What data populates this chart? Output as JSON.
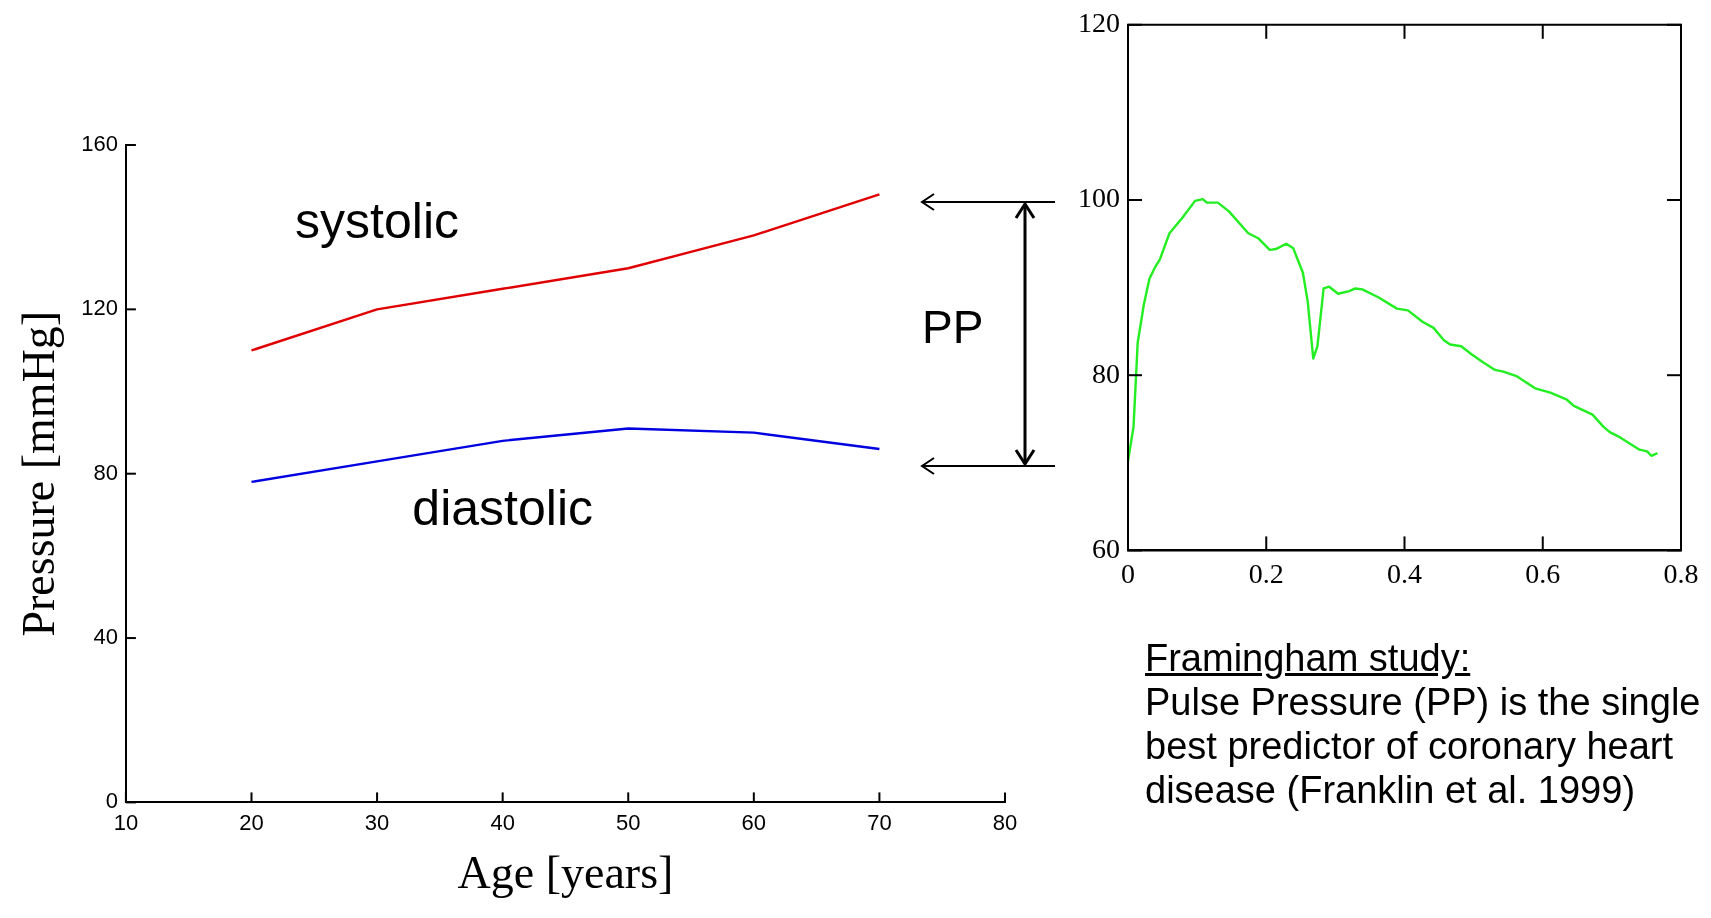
{
  "chart_data": [
    {
      "type": "line",
      "xlabel": "Age [years]",
      "ylabel": "Pressure [mmHg]",
      "x": [
        20,
        30,
        40,
        50,
        60,
        70
      ],
      "xlim": [
        10,
        80
      ],
      "xticks": [
        10,
        20,
        30,
        40,
        50,
        60,
        70,
        80
      ],
      "ylim": [
        0,
        160
      ],
      "yticks": [
        0,
        40,
        80,
        120,
        160
      ],
      "grid": false,
      "legend": false,
      "annotations": [
        "PP"
      ],
      "series": [
        {
          "name": "systolic",
          "color": "#e00000",
          "values": [
            110,
            120,
            125,
            130,
            138,
            148
          ]
        },
        {
          "name": "diastolic",
          "color": "#0000e0",
          "values": [
            78,
            83,
            88,
            91,
            90,
            86
          ]
        }
      ]
    },
    {
      "type": "line",
      "xlim": [
        0,
        0.8
      ],
      "xticks": [
        0,
        0.2,
        0.4,
        0.6,
        0.8
      ],
      "ylim": [
        60,
        120
      ],
      "yticks": [
        60,
        80,
        100,
        120
      ],
      "grid": false,
      "legend": false,
      "annotations": [
        "Framingham study:",
        "Pulse Pressure (PP) is the single best predictor of coronary heart disease (Franklin et al. 1999)"
      ],
      "series": [
        {
          "color": "#22ee22",
          "x": [
            0,
            0.008,
            0.014,
            0.023,
            0.031,
            0.039,
            0.046,
            0.06,
            0.079,
            0.097,
            0.108,
            0.114,
            0.13,
            0.146,
            0.174,
            0.189,
            0.205,
            0.214,
            0.229,
            0.239,
            0.245,
            0.253,
            0.26,
            0.268,
            0.274,
            0.283,
            0.291,
            0.304,
            0.32,
            0.329,
            0.339,
            0.362,
            0.389,
            0.405,
            0.426,
            0.442,
            0.457,
            0.466,
            0.482,
            0.497,
            0.513,
            0.531,
            0.543,
            0.562,
            0.589,
            0.611,
            0.635,
            0.645,
            0.672,
            0.688,
            0.697,
            0.712,
            0.74,
            0.751,
            0.757,
            0.766
          ],
          "values": [
            70.2,
            74.1,
            83.7,
            88.1,
            91.0,
            92.3,
            93.2,
            96.2,
            98.0,
            99.9,
            100.1,
            99.7,
            99.7,
            98.7,
            96.2,
            95.6,
            94.3,
            94.4,
            95.0,
            94.5,
            93.3,
            91.7,
            88.4,
            81.9,
            83.3,
            89.9,
            90.1,
            89.3,
            89.6,
            89.9,
            89.8,
            88.9,
            87.6,
            87.4,
            86.1,
            85.4,
            84.0,
            83.5,
            83.3,
            82.4,
            81.5,
            80.6,
            80.4,
            79.9,
            78.5,
            78.0,
            77.2,
            76.5,
            75.5,
            74.1,
            73.5,
            72.9,
            71.5,
            71.3,
            70.8,
            71.1
          ]
        }
      ]
    }
  ]
}
